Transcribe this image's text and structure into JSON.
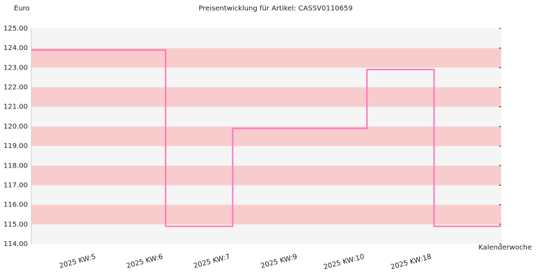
{
  "chart_data": {
    "type": "step-line",
    "title": "Preisentwicklung für Artikel: CASSV0110659",
    "y_label": "Euro",
    "x_label": "Kalenderwoche",
    "categories": [
      "2025 KW:5",
      "2025 KW:6",
      "2025 KW:7",
      "2025 KW:9",
      "2025 KW:10",
      "2025 KW:18"
    ],
    "series": [
      {
        "name": "CASSV0110659",
        "color": "#ff77bb",
        "values": [
          123.9,
          114.9,
          119.9,
          119.9,
          122.9,
          114.9
        ]
      }
    ],
    "ylim": [
      114,
      125
    ],
    "yticks": [
      {
        "value": 114,
        "label": "114.00"
      },
      {
        "value": 115,
        "label": "115.00"
      },
      {
        "value": 116,
        "label": "116.00"
      },
      {
        "value": 117,
        "label": "117.00"
      },
      {
        "value": 118,
        "label": "118.00"
      },
      {
        "value": 119,
        "label": "119.00"
      },
      {
        "value": 120,
        "label": "120.00"
      },
      {
        "value": 121,
        "label": "121.00"
      },
      {
        "value": 122,
        "label": "122.00"
      },
      {
        "value": 123,
        "label": "123.00"
      },
      {
        "value": 124,
        "label": "124.00"
      },
      {
        "value": 125,
        "label": "125.00"
      }
    ],
    "band_colors": [
      "#f5f5f5",
      "#f8cccc"
    ]
  }
}
